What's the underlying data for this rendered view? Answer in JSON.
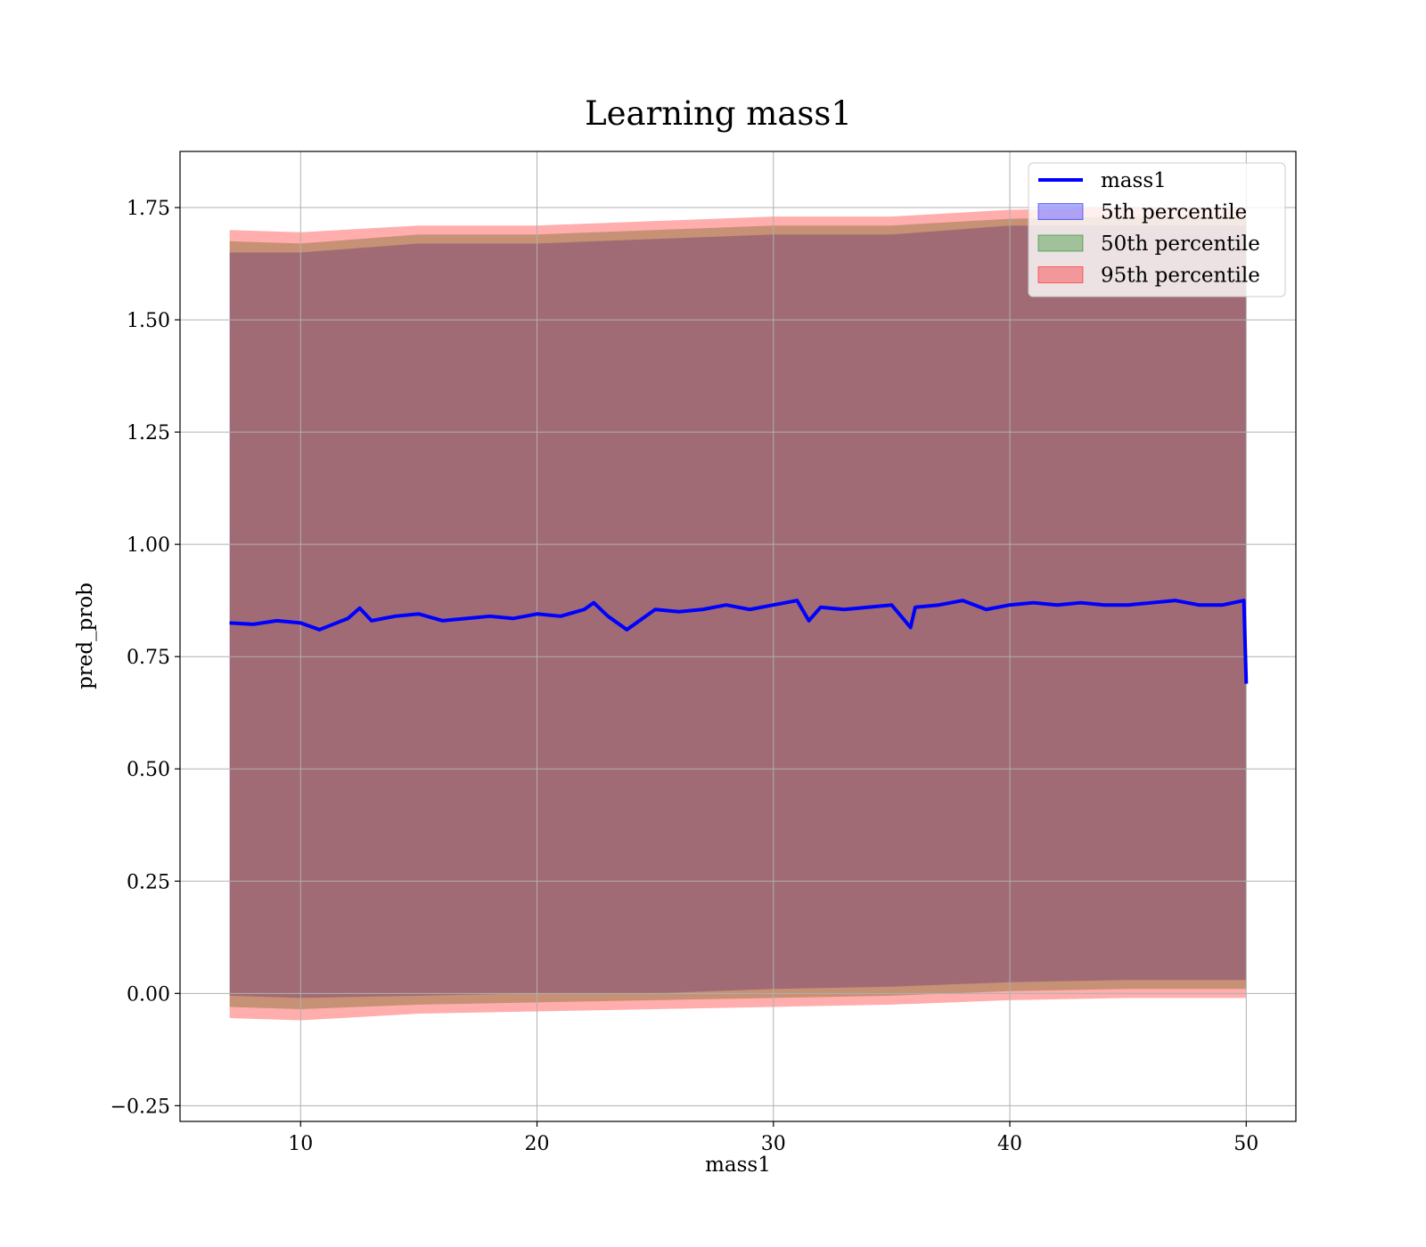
{
  "chart_data": {
    "type": "line",
    "title": "Learning mass1",
    "xlabel": "mass1",
    "ylabel": "pred_prob",
    "xlim": [
      4.9,
      52.1
    ],
    "ylim": [
      -0.285,
      1.875
    ],
    "x_ticks": [
      10,
      20,
      30,
      40,
      50
    ],
    "x_tick_labels": [
      "10",
      "20",
      "30",
      "40",
      "50"
    ],
    "y_ticks": [
      -0.25,
      0,
      0.25,
      0.5,
      0.75,
      1.0,
      1.25,
      1.5,
      1.75
    ],
    "y_tick_labels": [
      "−0.25",
      "0.00",
      "0.25",
      "0.50",
      "0.75",
      "1.00",
      "1.25",
      "1.50",
      "1.75"
    ],
    "grid": true,
    "legend_position": "top-right",
    "legend": [
      {
        "label": "mass1",
        "kind": "line",
        "color": "#0000ff"
      },
      {
        "label": "5th percentile",
        "kind": "patch",
        "color": "#0000ff"
      },
      {
        "label": "50th percentile",
        "kind": "patch",
        "color": "#008000"
      },
      {
        "label": "95th percentile",
        "kind": "patch",
        "color": "#ff0000"
      }
    ],
    "line_series": {
      "name": "mass1",
      "color": "#0000ff",
      "x": [
        7,
        8,
        9,
        10,
        10.8,
        12,
        12.5,
        13,
        14,
        15,
        16,
        17,
        18,
        19,
        20,
        21,
        22,
        22.4,
        23,
        23.8,
        25,
        26,
        27,
        28,
        29,
        30,
        31,
        31.5,
        32,
        33,
        34,
        35,
        35.8,
        36,
        37,
        38,
        39,
        40,
        41,
        42,
        43,
        44,
        45,
        46,
        47,
        48,
        49,
        49.9,
        50
      ],
      "y": [
        0.825,
        0.822,
        0.83,
        0.825,
        0.81,
        0.835,
        0.858,
        0.83,
        0.84,
        0.845,
        0.83,
        0.835,
        0.84,
        0.835,
        0.845,
        0.84,
        0.855,
        0.87,
        0.84,
        0.81,
        0.855,
        0.85,
        0.855,
        0.865,
        0.855,
        0.865,
        0.875,
        0.83,
        0.86,
        0.855,
        0.86,
        0.865,
        0.815,
        0.86,
        0.865,
        0.875,
        0.855,
        0.865,
        0.87,
        0.865,
        0.87,
        0.865,
        0.865,
        0.87,
        0.875,
        0.865,
        0.865,
        0.875,
        0.69
      ]
    },
    "bands": [
      {
        "name": "5th percentile",
        "color": "#0000ff",
        "x": [
          7,
          10,
          15,
          20,
          25,
          30,
          35,
          40,
          45,
          50
        ],
        "upper": [
          1.65,
          1.65,
          1.67,
          1.67,
          1.68,
          1.69,
          1.69,
          1.71,
          1.71,
          1.71
        ],
        "lower": [
          -0.005,
          -0.01,
          -0.005,
          0.0,
          0.0,
          0.01,
          0.015,
          0.025,
          0.03,
          0.03
        ]
      },
      {
        "name": "50th percentile",
        "color": "#008000",
        "x": [
          7,
          10,
          15,
          20,
          25,
          30,
          35,
          40,
          45,
          50
        ],
        "upper": [
          1.675,
          1.67,
          1.69,
          1.69,
          1.7,
          1.71,
          1.71,
          1.725,
          1.73,
          1.73
        ],
        "lower": [
          -0.03,
          -0.035,
          -0.025,
          -0.02,
          -0.015,
          -0.01,
          -0.005,
          0.005,
          0.01,
          0.01
        ]
      },
      {
        "name": "95th percentile",
        "color": "#ff0000",
        "x": [
          7,
          10,
          15,
          20,
          25,
          30,
          35,
          40,
          45,
          50
        ],
        "upper": [
          1.7,
          1.695,
          1.71,
          1.71,
          1.72,
          1.73,
          1.73,
          1.745,
          1.75,
          1.75
        ],
        "lower": [
          -0.055,
          -0.06,
          -0.045,
          -0.04,
          -0.035,
          -0.03,
          -0.025,
          -0.015,
          -0.01,
          -0.01
        ]
      }
    ]
  }
}
